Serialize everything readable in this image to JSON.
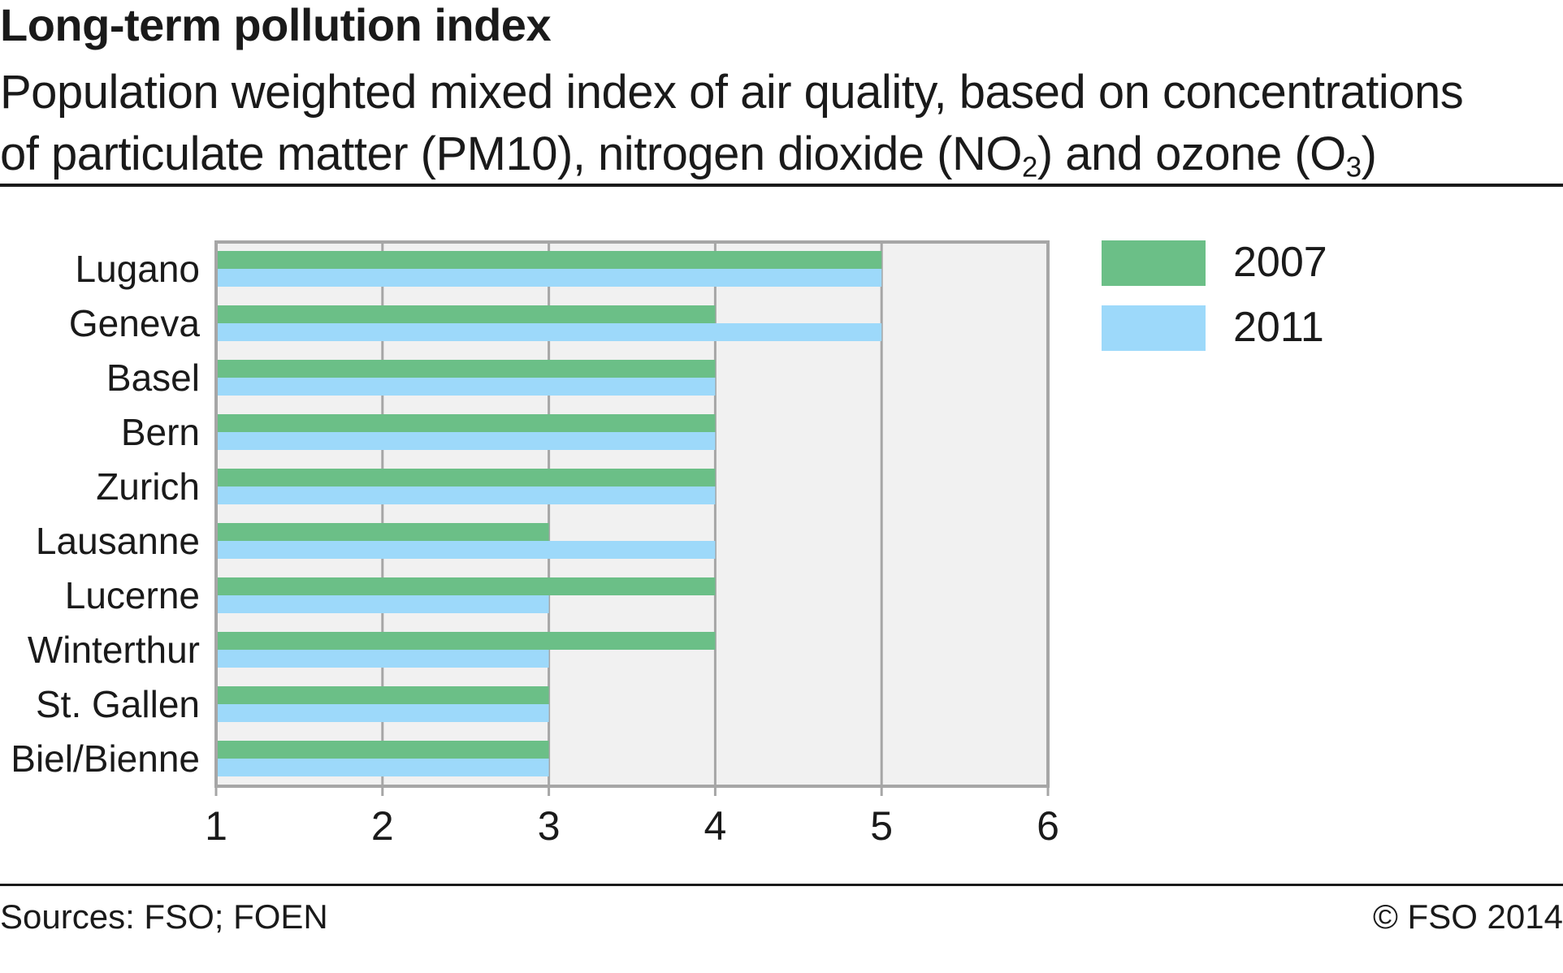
{
  "title": "Long-term pollution index",
  "subtitle": {
    "line1": "Population weighted mixed index of air quality, based on concentrations",
    "line2_a": "of particulate matter (PM10), nitrogen dioxide (NO",
    "no2_sub": "2",
    "line2_b": ") and ozone (O",
    "o3_sub": "3",
    "line2_c": ")"
  },
  "footer": {
    "source": "Sources: FSO; FOEN",
    "copyright": "© FSO 2014"
  },
  "colors": {
    "series_2007": "#6bbf87",
    "series_2011": "#9dd9fa",
    "plot_bg": "#f1f1f1",
    "grid": "#a6a6a6"
  },
  "chart_data": {
    "type": "bar",
    "orientation": "horizontal",
    "categories": [
      "Lugano",
      "Geneva",
      "Basel",
      "Bern",
      "Zurich",
      "Lausanne",
      "Lucerne",
      "Winterthur",
      "St. Gallen",
      "Biel/Bienne"
    ],
    "series": [
      {
        "name": "2007",
        "values": [
          5,
          4,
          4,
          4,
          4,
          3,
          4,
          4,
          3,
          3
        ]
      },
      {
        "name": "2011",
        "values": [
          5,
          5,
          4,
          4,
          4,
          4,
          3,
          3,
          3,
          3
        ]
      }
    ],
    "xticks": [
      "1",
      "2",
      "3",
      "4",
      "5",
      "6"
    ],
    "xlim": [
      1,
      6
    ],
    "grid": true,
    "legend": "top-right"
  }
}
